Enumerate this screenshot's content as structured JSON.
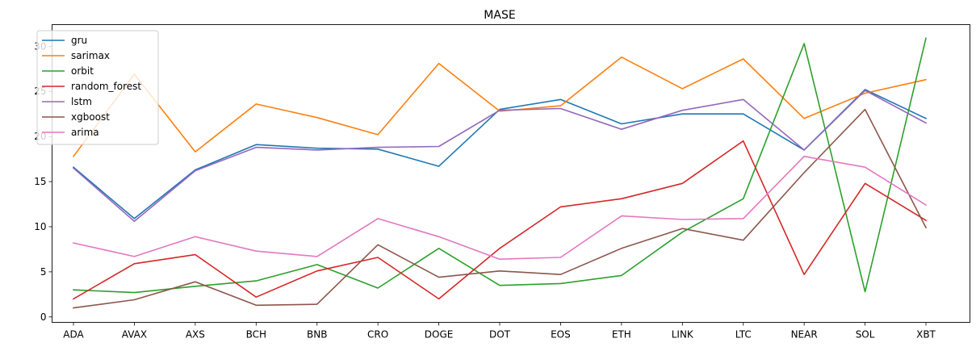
{
  "chart_data": {
    "type": "line",
    "title": "MASE",
    "xlabel": "",
    "ylabel": "",
    "categories": [
      "ADA",
      "AVAX",
      "AXS",
      "BCH",
      "BNB",
      "CRO",
      "DOGE",
      "DOT",
      "EOS",
      "ETH",
      "LINK",
      "LTC",
      "NEAR",
      "SOL",
      "XBT"
    ],
    "ylim": [
      -0.6,
      32.4
    ],
    "yticks": [
      0,
      5,
      10,
      15,
      20,
      25,
      30
    ],
    "grid": false,
    "legend_position": "top-left",
    "series": [
      {
        "name": "gru",
        "color": "#1f77b4",
        "values": [
          16.6,
          10.9,
          16.3,
          19.1,
          18.7,
          18.6,
          16.7,
          23.0,
          24.1,
          21.4,
          22.5,
          22.5,
          18.5,
          25.2,
          22.0
        ]
      },
      {
        "name": "sarimax",
        "color": "#ff7f0e",
        "values": [
          17.8,
          26.9,
          18.3,
          23.6,
          22.1,
          20.2,
          28.1,
          22.8,
          23.4,
          28.8,
          25.3,
          28.6,
          22.0,
          24.8,
          26.3
        ]
      },
      {
        "name": "orbit",
        "color": "#2ca02c",
        "values": [
          3.0,
          2.7,
          3.4,
          4.0,
          5.8,
          3.2,
          7.6,
          3.5,
          3.7,
          4.6,
          9.4,
          13.1,
          30.3,
          2.8,
          30.9
        ]
      },
      {
        "name": "random_forest",
        "color": "#d62728",
        "values": [
          2.0,
          5.9,
          6.9,
          2.2,
          5.1,
          6.6,
          2.0,
          7.6,
          12.2,
          13.1,
          14.8,
          19.5,
          4.7,
          14.8,
          10.7
        ]
      },
      {
        "name": "lstm",
        "color": "#9467bd",
        "values": [
          16.5,
          10.6,
          16.2,
          18.8,
          18.5,
          18.8,
          18.9,
          22.9,
          23.1,
          20.8,
          22.9,
          24.1,
          18.5,
          25.1,
          21.5
        ]
      },
      {
        "name": "xgboost",
        "color": "#8c564b",
        "values": [
          1.0,
          1.9,
          3.9,
          1.3,
          1.4,
          8.0,
          4.4,
          5.1,
          4.7,
          7.6,
          9.8,
          8.5,
          16.0,
          23.0,
          9.9
        ]
      },
      {
        "name": "arima",
        "color": "#e377c2",
        "values": [
          8.2,
          6.7,
          8.9,
          7.3,
          6.7,
          10.9,
          8.9,
          6.4,
          6.6,
          11.2,
          10.8,
          10.9,
          17.8,
          16.6,
          12.4
        ]
      }
    ]
  }
}
